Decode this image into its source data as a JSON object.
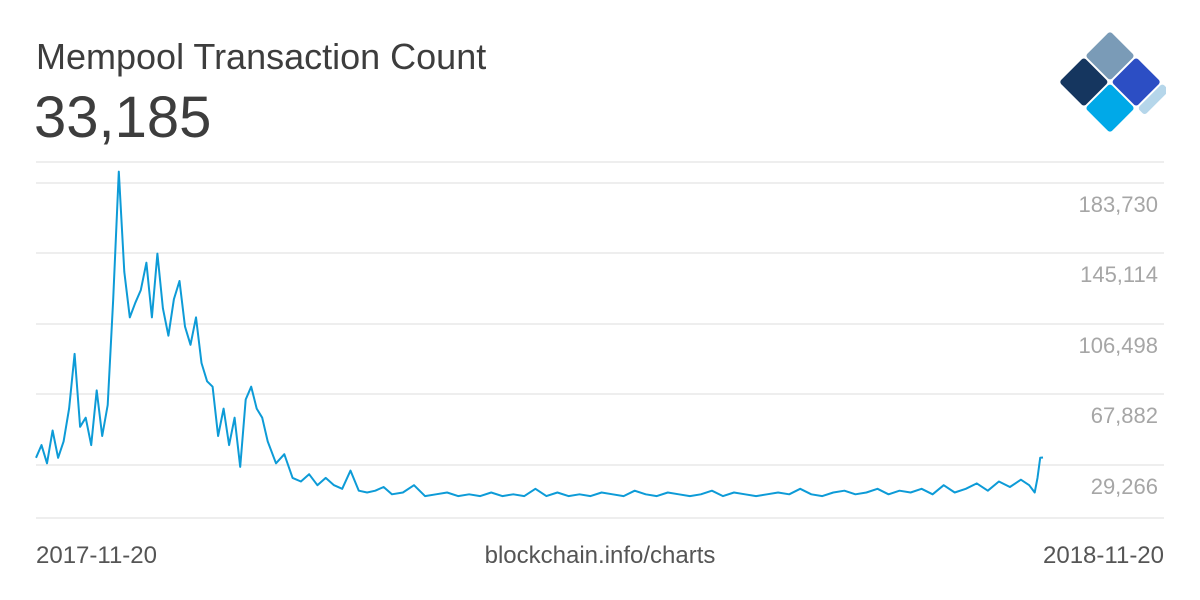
{
  "header": {
    "title": "Mempool Transaction Count",
    "current_value": "33,185"
  },
  "footer": {
    "start_date": "2017-11-20",
    "source": "blockchain.info/charts",
    "end_date": "2018-11-20"
  },
  "colors": {
    "line": "#0d9bd7",
    "grid": "#dddddd",
    "tick_text": "#a6a6a6",
    "title_text": "#3d3d3d",
    "logo": [
      "#7a9bb7",
      "#15365f",
      "#2c4ec4",
      "#00a9e8",
      "#b5d6ea"
    ]
  },
  "chart_data": {
    "type": "line",
    "title": "Mempool Transaction Count",
    "xlabel": "",
    "ylabel": "",
    "x_range": [
      "2017-11-20",
      "2018-11-20"
    ],
    "y_ticks": [
      29266,
      67882,
      106498,
      145114,
      183730
    ],
    "y_tick_labels": [
      "29,266",
      "67,882",
      "106,498",
      "145,114",
      "183,730"
    ],
    "ylim": [
      0,
      192000
    ],
    "grid": true,
    "series": [
      {
        "name": "",
        "x": [
          "2017-11-20",
          "2017-11-22",
          "2017-11-24",
          "2017-11-26",
          "2017-11-28",
          "2017-11-30",
          "2017-12-02",
          "2017-12-04",
          "2017-12-06",
          "2017-12-08",
          "2017-12-10",
          "2017-12-12",
          "2017-12-14",
          "2017-12-16",
          "2017-12-18",
          "2017-12-20",
          "2017-12-22",
          "2017-12-24",
          "2017-12-26",
          "2017-12-28",
          "2017-12-30",
          "2018-01-01",
          "2018-01-03",
          "2018-01-05",
          "2018-01-07",
          "2018-01-09",
          "2018-01-11",
          "2018-01-13",
          "2018-01-15",
          "2018-01-17",
          "2018-01-19",
          "2018-01-21",
          "2018-01-23",
          "2018-01-25",
          "2018-01-27",
          "2018-01-29",
          "2018-01-31",
          "2018-02-02",
          "2018-02-04",
          "2018-02-06",
          "2018-02-08",
          "2018-02-10",
          "2018-02-12",
          "2018-02-15",
          "2018-02-18",
          "2018-02-21",
          "2018-02-24",
          "2018-02-27",
          "2018-03-02",
          "2018-03-05",
          "2018-03-08",
          "2018-03-11",
          "2018-03-14",
          "2018-03-17",
          "2018-03-20",
          "2018-03-23",
          "2018-03-26",
          "2018-03-29",
          "2018-04-02",
          "2018-04-06",
          "2018-04-10",
          "2018-04-14",
          "2018-04-18",
          "2018-04-22",
          "2018-04-26",
          "2018-04-30",
          "2018-05-04",
          "2018-05-08",
          "2018-05-12",
          "2018-05-16",
          "2018-05-20",
          "2018-05-24",
          "2018-05-28",
          "2018-06-01",
          "2018-06-05",
          "2018-06-09",
          "2018-06-13",
          "2018-06-17",
          "2018-06-21",
          "2018-06-25",
          "2018-06-29",
          "2018-07-03",
          "2018-07-07",
          "2018-07-11",
          "2018-07-15",
          "2018-07-19",
          "2018-07-23",
          "2018-07-27",
          "2018-07-31",
          "2018-08-04",
          "2018-08-08",
          "2018-08-12",
          "2018-08-16",
          "2018-08-20",
          "2018-08-24",
          "2018-08-28",
          "2018-09-01",
          "2018-09-05",
          "2018-09-09",
          "2018-09-13",
          "2018-09-17",
          "2018-09-21",
          "2018-09-25",
          "2018-09-29",
          "2018-10-03",
          "2018-10-07",
          "2018-10-11",
          "2018-10-15",
          "2018-10-19",
          "2018-10-23",
          "2018-10-27",
          "2018-10-31",
          "2018-11-04",
          "2018-11-08",
          "2018-11-12",
          "2018-11-15",
          "2018-11-17",
          "2018-11-18",
          "2018-11-19",
          "2018-11-20"
        ],
        "values": [
          33000,
          40000,
          30000,
          48000,
          33000,
          42000,
          60000,
          90000,
          50000,
          55000,
          40000,
          70000,
          45000,
          62000,
          120000,
          190000,
          135000,
          110000,
          118000,
          125000,
          140000,
          110000,
          145000,
          115000,
          100000,
          120000,
          130000,
          105000,
          95000,
          110000,
          85000,
          75000,
          72000,
          45000,
          60000,
          40000,
          55000,
          28000,
          65000,
          72000,
          60000,
          55000,
          42000,
          30000,
          35000,
          22000,
          20000,
          24000,
          18000,
          22000,
          18000,
          16000,
          26000,
          15000,
          14000,
          15000,
          17000,
          13000,
          14000,
          18000,
          12000,
          13000,
          14000,
          12000,
          13000,
          12000,
          14000,
          12000,
          13000,
          12000,
          16000,
          12000,
          14000,
          12000,
          13000,
          12000,
          14000,
          13000,
          12000,
          15000,
          13000,
          12000,
          14000,
          13000,
          12000,
          13000,
          15000,
          12000,
          14000,
          13000,
          12000,
          13000,
          14000,
          13000,
          16000,
          13000,
          12000,
          14000,
          15000,
          13000,
          14000,
          16000,
          13000,
          15000,
          14000,
          16000,
          13000,
          18000,
          14000,
          16000,
          19000,
          15000,
          20000,
          17000,
          21000,
          18000,
          14000,
          22000,
          33000,
          33185
        ]
      }
    ]
  }
}
